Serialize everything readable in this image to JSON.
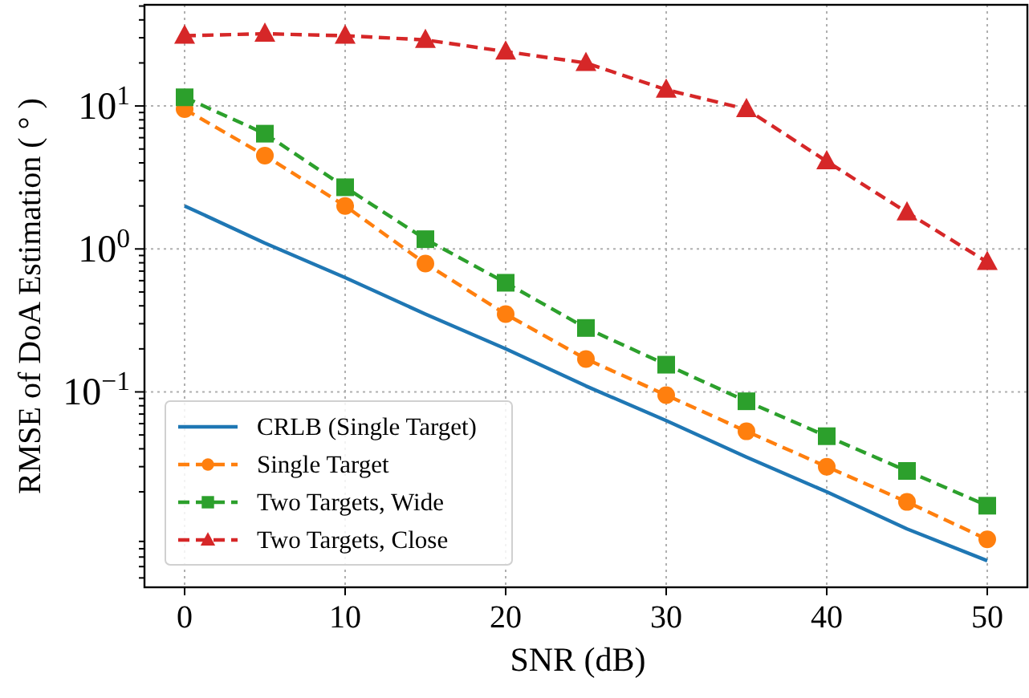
{
  "chart_data": {
    "type": "line",
    "xlabel": "SNR (dB)",
    "ylabel": "RMSE of DoA Estimation ( ° )",
    "log": "y",
    "grid": true,
    "legend": "bottom left",
    "xlim": [
      -2.5,
      52.5
    ],
    "xticks": [
      0,
      10,
      20,
      30,
      40,
      50
    ],
    "ylim": [
      0.0043,
      51
    ],
    "yticks": [
      {
        "value": 0.005,
        "label": null
      },
      {
        "value": 0.006,
        "label": null
      },
      {
        "value": 0.007,
        "label": null
      },
      {
        "value": 0.008,
        "label": null
      },
      {
        "value": 0.009,
        "label": null
      },
      {
        "value": 0.02,
        "label": null
      },
      {
        "value": 0.03,
        "label": null
      },
      {
        "value": 0.04,
        "label": null
      },
      {
        "value": 0.05,
        "label": null
      },
      {
        "value": 0.06,
        "label": null
      },
      {
        "value": 0.07,
        "label": null
      },
      {
        "value": 0.08,
        "label": null
      },
      {
        "value": 0.09,
        "label": null
      },
      {
        "value": 0.1,
        "label": "10$^{−1}$"
      },
      {
        "value": 0.2,
        "label": null
      },
      {
        "value": 0.3,
        "label": null
      },
      {
        "value": 0.4,
        "label": null
      },
      {
        "value": 0.5,
        "label": null
      },
      {
        "value": 0.6,
        "label": null
      },
      {
        "value": 0.7,
        "label": null
      },
      {
        "value": 0.8,
        "label": null
      },
      {
        "value": 0.9,
        "label": null
      },
      {
        "value": 1,
        "label": "10$^{0}$"
      },
      {
        "value": 2,
        "label": null
      },
      {
        "value": 3,
        "label": null
      },
      {
        "value": 4,
        "label": null
      },
      {
        "value": 5,
        "label": null
      },
      {
        "value": 6,
        "label": null
      },
      {
        "value": 7,
        "label": null
      },
      {
        "value": 8,
        "label": null
      },
      {
        "value": 9,
        "label": null
      },
      {
        "value": 10,
        "label": "10$^{1}$"
      },
      {
        "value": 20,
        "label": null
      },
      {
        "value": 30,
        "label": null
      },
      {
        "value": 40,
        "label": null
      },
      {
        "value": 50,
        "label": null
      }
    ],
    "x": [
      0,
      5,
      10,
      15,
      20,
      25,
      30,
      35,
      40,
      45,
      50
    ],
    "series": [
      {
        "name": "CRLB (Single Target)",
        "color": "#1f77b4",
        "marker": "none",
        "line_style": "solid",
        "values": [
          2.0,
          1.1,
          0.63,
          0.35,
          0.2,
          0.11,
          0.063,
          0.035,
          0.02,
          0.011,
          0.0066
        ]
      },
      {
        "name": "Single Target",
        "color": "#ff7f0e",
        "marker": "circle",
        "line_style": "dashed",
        "values": [
          9.5,
          4.5,
          2.0,
          0.79,
          0.35,
          0.17,
          0.095,
          0.053,
          0.03,
          0.017,
          0.0093
        ]
      },
      {
        "name": "Two Targets, Wide",
        "color": "#2ca02c",
        "marker": "square",
        "line_style": "dashed",
        "values": [
          11.5,
          6.4,
          2.7,
          1.17,
          0.58,
          0.28,
          0.155,
          0.086,
          0.049,
          0.028,
          0.016
        ]
      },
      {
        "name": "Two Targets, Close",
        "color": "#d62728",
        "marker": "triangle",
        "line_style": "dashed",
        "values": [
          31,
          32,
          31,
          29,
          24,
          20,
          13,
          9.5,
          4.1,
          1.8,
          0.81
        ]
      }
    ]
  }
}
